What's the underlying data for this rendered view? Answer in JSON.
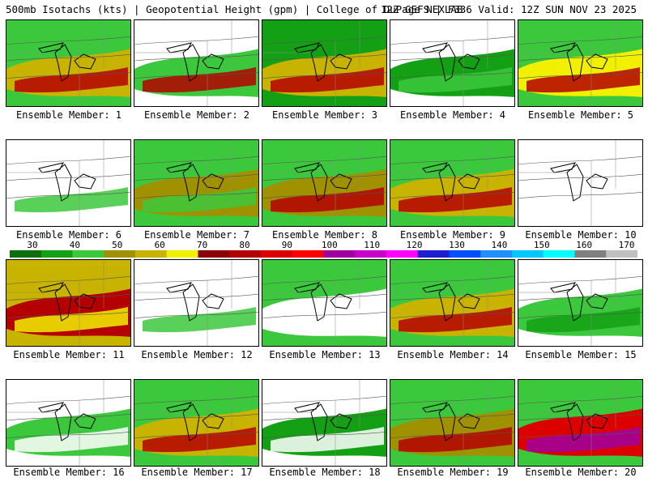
{
  "header": {
    "left": "500mb Isotachs (kts) | Geopotential Height (gpm) | College of DuPage NEXLAB",
    "right": "12Z GEFS | F336 Valid: 12Z SUN NOV 23 2025"
  },
  "member_label_prefix": "Ensemble Member:",
  "members": [
    "1",
    "2",
    "3",
    "4",
    "5",
    "6",
    "7",
    "8",
    "9",
    "10",
    "11",
    "12",
    "13",
    "14",
    "15",
    "16",
    "17",
    "18",
    "19",
    "20"
  ],
  "legend": {
    "labels": [
      "30",
      "40",
      "50",
      "60",
      "70",
      "80",
      "90",
      "100",
      "110",
      "120",
      "130",
      "140",
      "150",
      "160",
      "170"
    ],
    "colors": [
      "#0d6e0d",
      "#14a014",
      "#3cc83c",
      "#a09100",
      "#c8b400",
      "#f0f000",
      "#8b0000",
      "#b40000",
      "#dc0000",
      "#ff0000",
      "#a000a0",
      "#c800c8",
      "#ff00ff",
      "#1e1ed2",
      "#0050ff",
      "#1e90ff",
      "#00c8ff",
      "#00ffff",
      "#808080",
      "#c0c0c0"
    ]
  }
}
